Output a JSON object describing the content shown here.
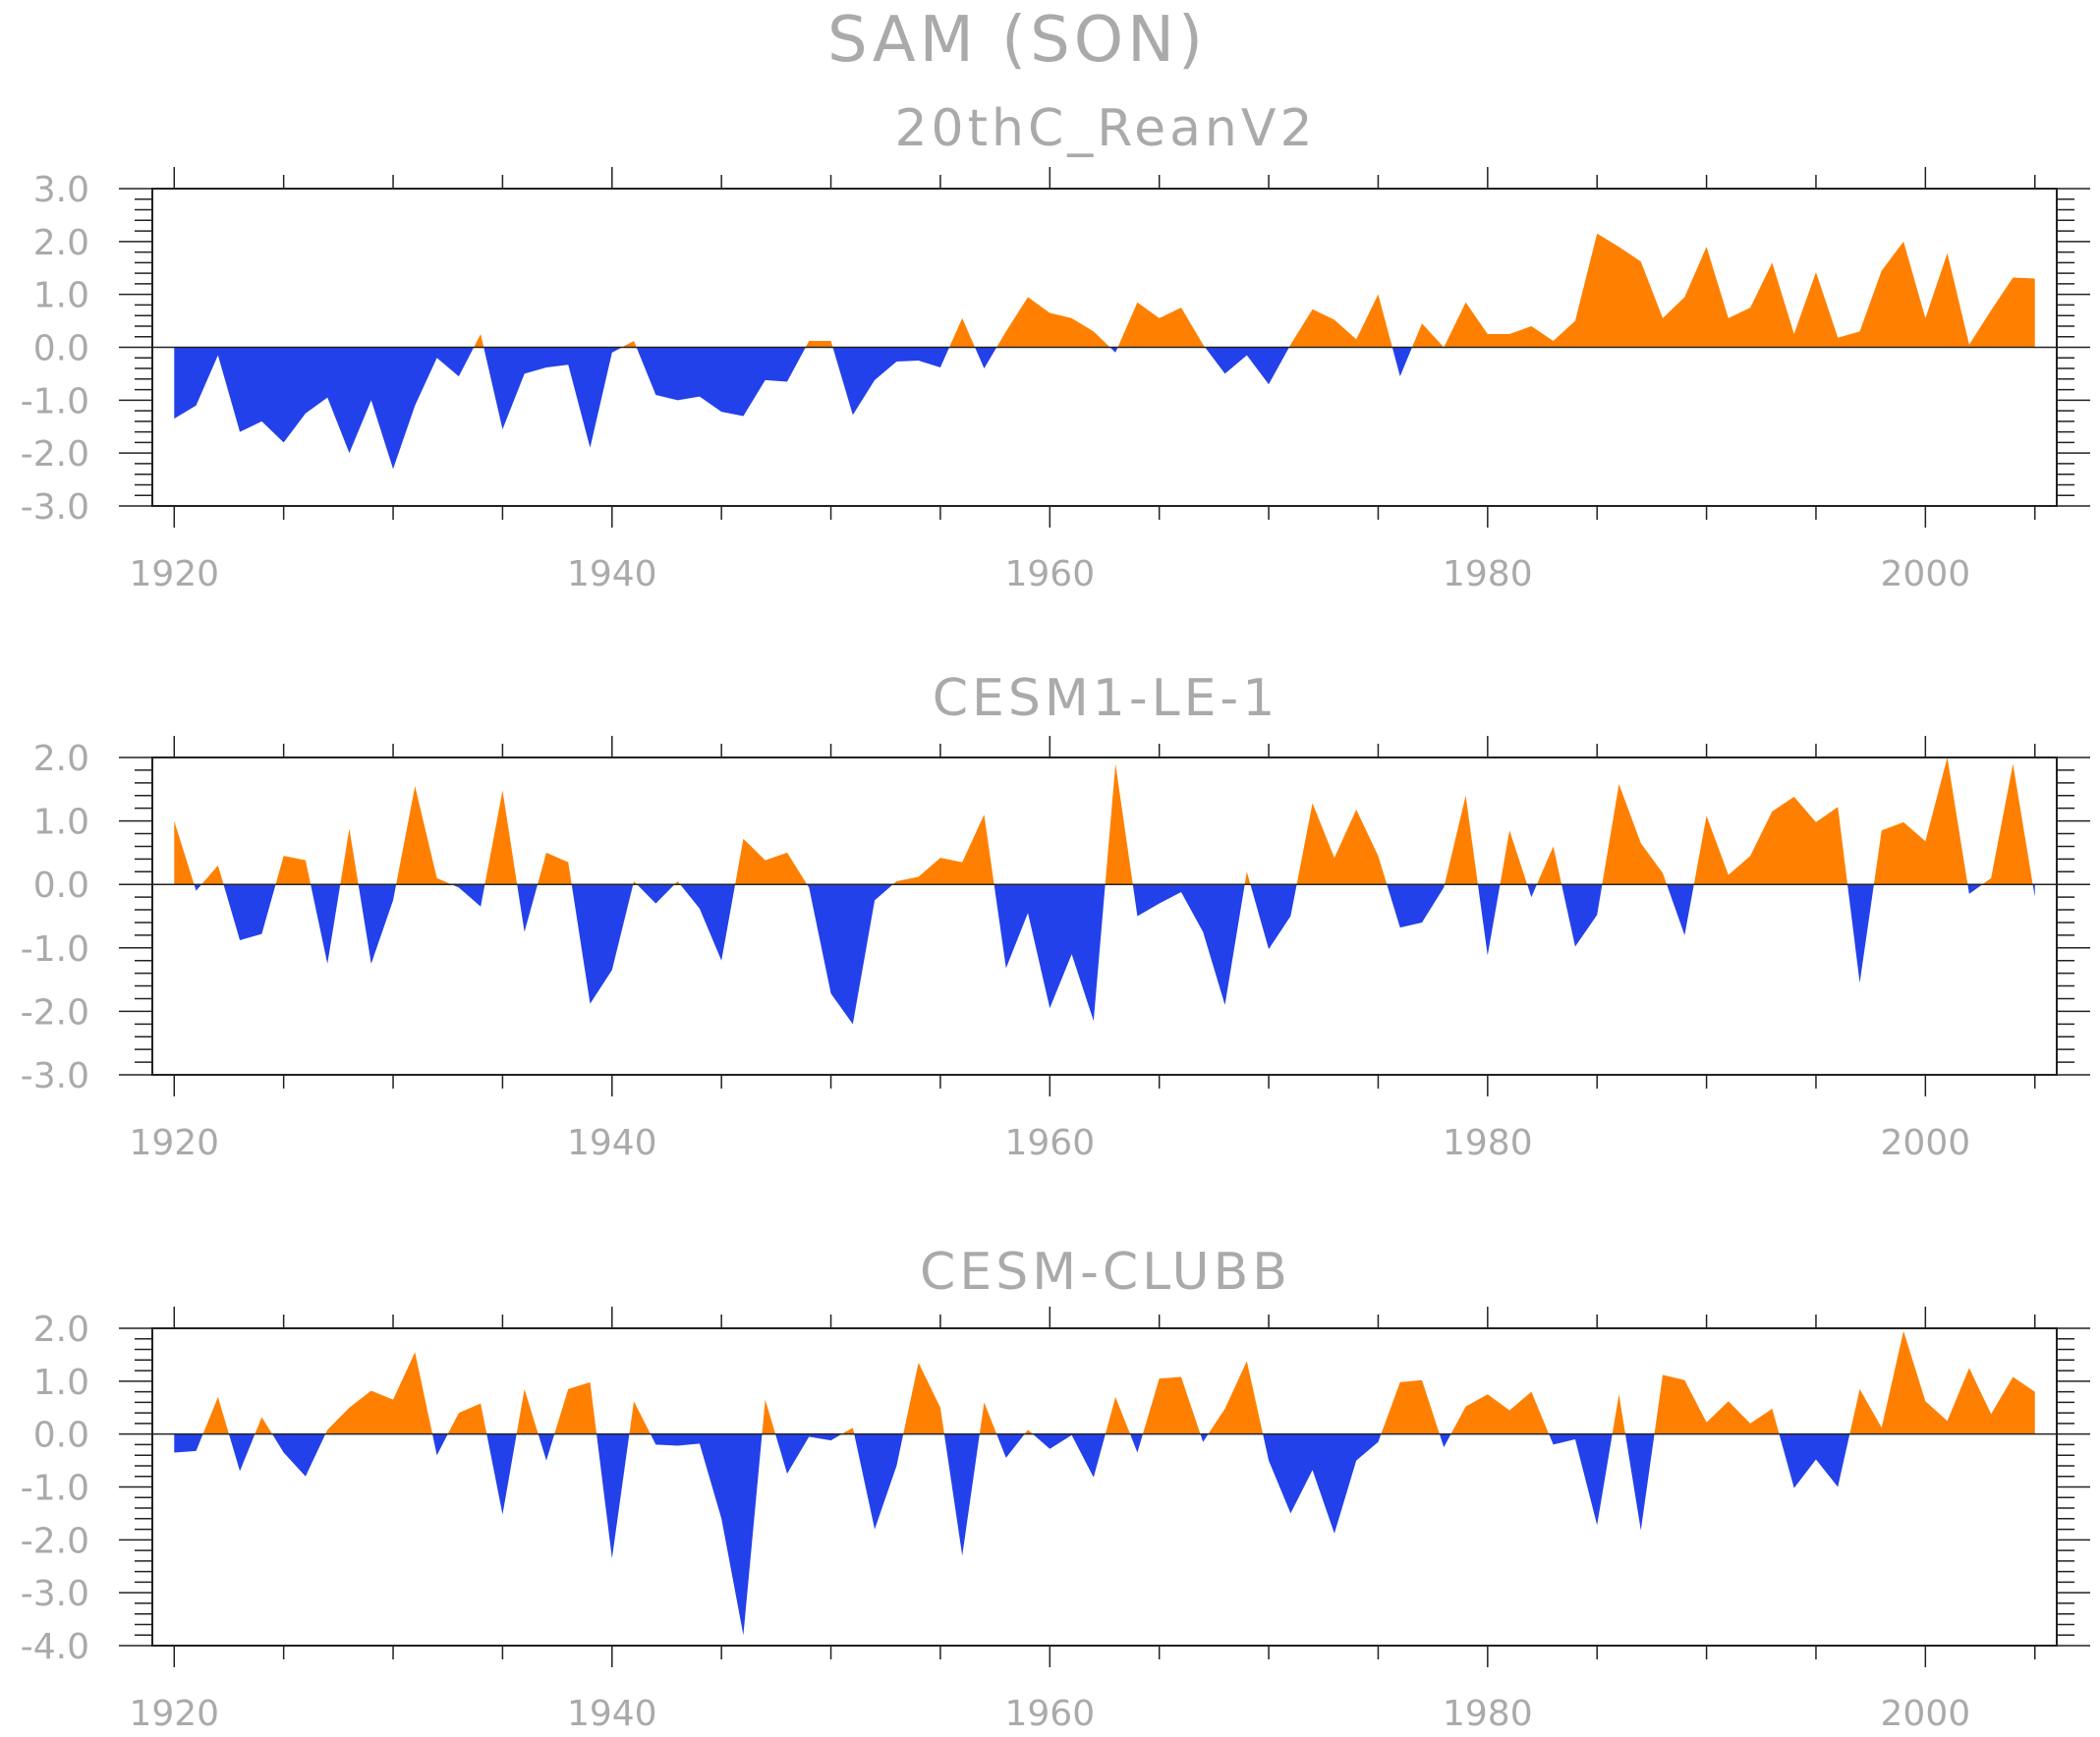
{
  "figure_title": "SAM (SON)",
  "colors": {
    "positive": "#ff8000",
    "negative": "#2341ea",
    "text": "#aaaaaa",
    "axes": "#222222"
  },
  "chart_data": [
    {
      "type": "area",
      "title": "20thC_ReanV2",
      "xlabel": "",
      "ylabel": "",
      "x_start": 1920,
      "xlim": [
        1919,
        2006
      ],
      "x_ticks": [
        1920,
        1940,
        1960,
        1980,
        2000
      ],
      "ylim": [
        -3,
        3
      ],
      "y_ticks": [
        -3,
        -2,
        -1,
        0,
        1,
        2,
        3
      ],
      "y_tick_labels": [
        "-3.0",
        "-2.0",
        "-1.0",
        "0.0",
        "1.0",
        "2.0",
        "3.0"
      ],
      "values": [
        -1.35,
        -1.1,
        -0.15,
        -1.6,
        -1.4,
        -1.8,
        -1.25,
        -0.95,
        -2.0,
        -1.0,
        -2.3,
        -1.1,
        -0.2,
        -0.55,
        0.25,
        -1.55,
        -0.5,
        -0.38,
        -0.33,
        -1.9,
        -0.1,
        0.12,
        -0.9,
        -1.0,
        -0.93,
        -1.22,
        -1.3,
        -0.62,
        -0.65,
        0.12,
        0.12,
        -1.28,
        -0.62,
        -0.27,
        -0.25,
        -0.38,
        0.55,
        -0.4,
        0.3,
        0.95,
        0.65,
        0.55,
        0.3,
        -0.1,
        0.85,
        0.55,
        0.75,
        0.05,
        -0.5,
        -0.15,
        -0.7,
        0.05,
        0.72,
        0.52,
        0.15,
        1.0,
        -0.55,
        0.45,
        0.0,
        0.85,
        0.25,
        0.25,
        0.4,
        0.12,
        0.5,
        2.15,
        1.9,
        1.62,
        0.55,
        0.95,
        1.9,
        0.55,
        0.75,
        1.6,
        0.25,
        1.42,
        0.18,
        0.3,
        1.45,
        2.0,
        0.55,
        1.78,
        0.05,
        0.7,
        1.32,
        1.3
      ]
    },
    {
      "type": "area",
      "title": "CESM1-LE-1",
      "xlabel": "",
      "ylabel": "",
      "x_start": 1920,
      "xlim": [
        1919,
        2006
      ],
      "x_ticks": [
        1920,
        1940,
        1960,
        1980,
        2000
      ],
      "ylim": [
        -3,
        2
      ],
      "y_ticks": [
        -3,
        -2,
        -1,
        0,
        1,
        2
      ],
      "y_tick_labels": [
        "-3.0",
        "-2.0",
        "-1.0",
        "0.0",
        "1.0",
        "2.0"
      ],
      "values": [
        1.0,
        -0.1,
        0.3,
        -0.88,
        -0.78,
        0.45,
        0.38,
        -1.25,
        0.88,
        -1.25,
        -0.25,
        1.55,
        0.1,
        -0.05,
        -0.35,
        1.48,
        -0.75,
        0.5,
        0.35,
        -1.88,
        -1.35,
        0.05,
        -0.3,
        0.05,
        -0.38,
        -1.2,
        0.72,
        0.38,
        0.5,
        -0.05,
        -1.72,
        -2.2,
        -0.25,
        0.05,
        0.12,
        0.42,
        0.35,
        1.1,
        -1.32,
        -0.45,
        -1.95,
        -1.1,
        -2.15,
        1.9,
        -0.5,
        -0.3,
        -0.12,
        -0.75,
        -1.9,
        0.2,
        -1.02,
        -0.5,
        1.28,
        0.42,
        1.18,
        0.45,
        -0.68,
        -0.6,
        -0.05,
        1.4,
        -1.12,
        0.85,
        -0.2,
        0.6,
        -0.98,
        -0.48,
        1.58,
        0.65,
        0.18,
        -0.8,
        1.08,
        0.15,
        0.45,
        1.15,
        1.38,
        0.98,
        1.22,
        -1.55,
        0.85,
        0.98,
        0.68,
        2.0,
        -0.15,
        0.1,
        1.9,
        -0.2
      ]
    },
    {
      "type": "area",
      "title": "CESM-CLUBB",
      "xlabel": "",
      "ylabel": "",
      "x_start": 1920,
      "xlim": [
        1919,
        2006
      ],
      "x_ticks": [
        1920,
        1940,
        1960,
        1980,
        2000
      ],
      "ylim": [
        -4,
        2
      ],
      "y_ticks": [
        -4,
        -3,
        -2,
        -1,
        0,
        1,
        2
      ],
      "y_tick_labels": [
        "-4.0",
        "-3.0",
        "-2.0",
        "-1.0",
        "0.0",
        "1.0",
        "2.0"
      ],
      "values": [
        -0.35,
        -0.32,
        0.7,
        -0.7,
        0.32,
        -0.35,
        -0.8,
        0.08,
        0.5,
        0.82,
        0.65,
        1.55,
        -0.4,
        0.4,
        0.58,
        -1.52,
        0.85,
        -0.5,
        0.85,
        0.98,
        -2.35,
        0.62,
        -0.2,
        -0.22,
        -0.18,
        -1.6,
        -3.8,
        0.65,
        -0.75,
        -0.05,
        -0.12,
        0.12,
        -1.8,
        -0.6,
        1.35,
        0.5,
        -2.3,
        0.6,
        -0.45,
        0.08,
        -0.28,
        -0.02,
        -0.82,
        0.7,
        -0.35,
        1.05,
        1.08,
        -0.15,
        0.48,
        1.38,
        -0.5,
        -1.5,
        -0.68,
        -1.88,
        -0.5,
        -0.15,
        0.98,
        1.02,
        -0.25,
        0.52,
        0.75,
        0.45,
        0.8,
        -0.2,
        -0.1,
        -1.72,
        0.75,
        -1.82,
        1.12,
        1.02,
        0.22,
        0.62,
        0.2,
        0.48,
        -1.02,
        -0.48,
        -1.0,
        0.85,
        0.12,
        1.95,
        0.62,
        0.25,
        1.25,
        0.38,
        1.08,
        0.8
      ]
    }
  ]
}
